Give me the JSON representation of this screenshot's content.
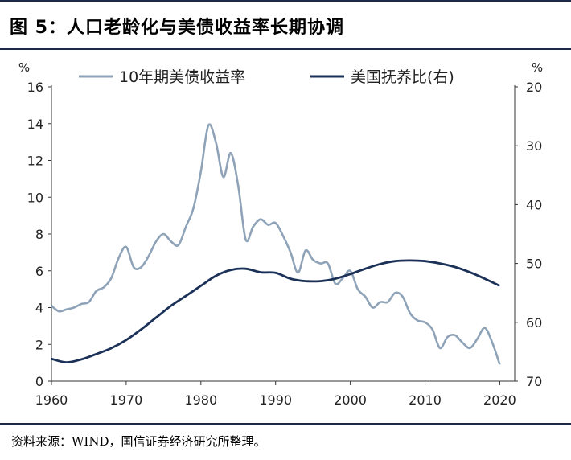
{
  "title": "图 5：人口老龄化与美债收益率长期协调",
  "source": "资料来源：WIND，国信证券经济研究所整理。",
  "colors": {
    "yield": "#8fa3b8",
    "dependency": "#1b3158",
    "border": "#1c2a4a"
  },
  "chart_data": {
    "type": "line",
    "xlabel": "",
    "x_ticks": [
      "1960",
      "1970",
      "1980",
      "1990",
      "2000",
      "2010",
      "2020"
    ],
    "xlim": [
      1960,
      2022
    ],
    "y_left": {
      "unit": "%",
      "lim": [
        0,
        16
      ],
      "ticks": [
        "0",
        "2",
        "4",
        "6",
        "8",
        "10",
        "12",
        "14",
        "16"
      ]
    },
    "y_right": {
      "unit": "%",
      "lim": [
        20,
        70
      ],
      "inverted": true,
      "ticks": [
        "20",
        "30",
        "40",
        "50",
        "60",
        "70"
      ]
    },
    "legend": {
      "placement": "top"
    },
    "grid": false,
    "series": [
      {
        "name": "10年期美债收益率",
        "axis": "left",
        "x": [
          1960,
          1961,
          1962,
          1963,
          1964,
          1965,
          1966,
          1967,
          1968,
          1969,
          1970,
          1971,
          1972,
          1973,
          1974,
          1975,
          1976,
          1977,
          1978,
          1979,
          1980,
          1981,
          1982,
          1983,
          1984,
          1985,
          1986,
          1987,
          1988,
          1989,
          1990,
          1991,
          1992,
          1993,
          1994,
          1995,
          1996,
          1997,
          1998,
          1999,
          2000,
          2001,
          2002,
          2003,
          2004,
          2005,
          2006,
          2007,
          2008,
          2009,
          2010,
          2011,
          2012,
          2013,
          2014,
          2015,
          2016,
          2017,
          2018,
          2019,
          2020
        ],
        "values": [
          4.1,
          3.8,
          3.9,
          4.0,
          4.2,
          4.3,
          4.9,
          5.1,
          5.6,
          6.7,
          7.3,
          6.2,
          6.2,
          6.8,
          7.6,
          8.0,
          7.6,
          7.4,
          8.4,
          9.4,
          11.4,
          13.9,
          13.0,
          11.1,
          12.4,
          10.6,
          7.7,
          8.4,
          8.8,
          8.5,
          8.6,
          7.9,
          7.0,
          5.9,
          7.1,
          6.6,
          6.4,
          6.4,
          5.3,
          5.6,
          6.0,
          5.0,
          4.6,
          4.0,
          4.3,
          4.3,
          4.8,
          4.6,
          3.7,
          3.3,
          3.2,
          2.8,
          1.8,
          2.4,
          2.5,
          2.1,
          1.8,
          2.3,
          2.9,
          2.1,
          0.9
        ]
      },
      {
        "name": "美国抚养比(右)",
        "axis": "right",
        "x": [
          1960,
          1962,
          1964,
          1966,
          1968,
          1970,
          1972,
          1974,
          1976,
          1978,
          1980,
          1982,
          1984,
          1986,
          1988,
          1990,
          1992,
          1994,
          1996,
          1998,
          2000,
          2002,
          2004,
          2006,
          2008,
          2010,
          2012,
          2014,
          2016,
          2018,
          2020
        ],
        "values": [
          66.2,
          66.8,
          66.3,
          65.4,
          64.4,
          63.0,
          61.2,
          59.2,
          57.2,
          55.5,
          53.8,
          52.1,
          51.1,
          50.9,
          51.5,
          51.6,
          52.6,
          53.0,
          53.0,
          52.6,
          51.8,
          50.9,
          50.1,
          49.6,
          49.5,
          49.6,
          50.0,
          50.6,
          51.5,
          52.6,
          53.8
        ]
      }
    ]
  }
}
